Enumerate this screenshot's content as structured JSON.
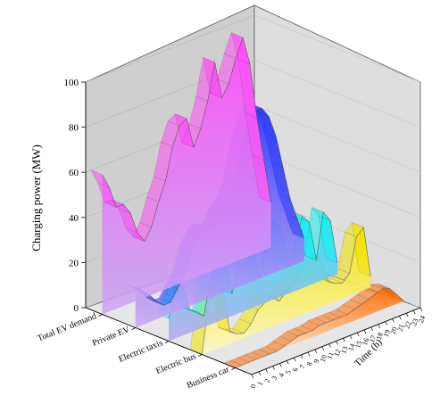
{
  "chart_data": {
    "type": "area",
    "subtype": "3d-waterfall",
    "title": "",
    "zlabel": "Charging power (MW)",
    "xlabel": "Time (h)",
    "zlim": [
      0,
      100
    ],
    "z_ticks": [
      "0",
      "20",
      "40",
      "60",
      "80",
      "100"
    ],
    "xlim": [
      0,
      24
    ],
    "x_ticks": [
      "0",
      "1",
      "2",
      "3",
      "4",
      "5",
      "6",
      "7",
      "8",
      "9",
      "10",
      "11",
      "12",
      "13",
      "14",
      "15",
      "16",
      "17",
      "18",
      "19",
      "20",
      "21",
      "22",
      "23",
      "24"
    ],
    "x": [
      0,
      1,
      2,
      3,
      4,
      5,
      6,
      7,
      8,
      9,
      10,
      11,
      12,
      13,
      14,
      15,
      16,
      17,
      18,
      19,
      20,
      21,
      22,
      23,
      24
    ],
    "series": [
      {
        "name": "Total EV demand",
        "color_bottom": "#c9a6f5",
        "color_top": "#ff4cf8",
        "values": [
          62,
          55,
          45,
          45,
          40,
          30,
          25,
          30,
          40,
          48,
          62,
          70,
          72,
          58,
          65,
          76,
          92,
          75,
          80,
          90,
          98,
          85,
          60,
          40,
          20
        ]
      },
      {
        "name": "Private EV",
        "color_bottom": "#c9a6f5",
        "color_top": "#2a3cff",
        "values": [
          18,
          15,
          12,
          8,
          5,
          5,
          10,
          15,
          25,
          30,
          32,
          30,
          35,
          38,
          45,
          60,
          68,
          76,
          75,
          70,
          60,
          45,
          30,
          20,
          10
        ]
      },
      {
        "name": "Electric taxis",
        "color_bottom": "#b6a6f0",
        "color_top": "#18f0f0",
        "values": [
          10,
          18,
          22,
          10,
          8,
          5,
          20,
          30,
          25,
          10,
          22,
          30,
          26,
          12,
          28,
          35,
          30,
          12,
          20,
          32,
          28,
          10,
          30,
          25,
          5
        ]
      },
      {
        "name": "Electric bus",
        "color_bottom": "#fff9c0",
        "color_top": "#f2e200",
        "values": [
          0,
          22,
          26,
          24,
          5,
          3,
          2,
          5,
          10,
          12,
          14,
          10,
          13,
          15,
          20,
          22,
          25,
          20,
          10,
          8,
          7,
          10,
          25,
          28,
          5
        ]
      },
      {
        "name": "Business car",
        "color_bottom": "#fffdf0",
        "color_top": "#ff6a00",
        "values": [
          0,
          0,
          0,
          0,
          0,
          0,
          0,
          1,
          2,
          3,
          3,
          3,
          4,
          4,
          4,
          4,
          4,
          5,
          6,
          7,
          8,
          9,
          8,
          4,
          0
        ]
      }
    ]
  }
}
